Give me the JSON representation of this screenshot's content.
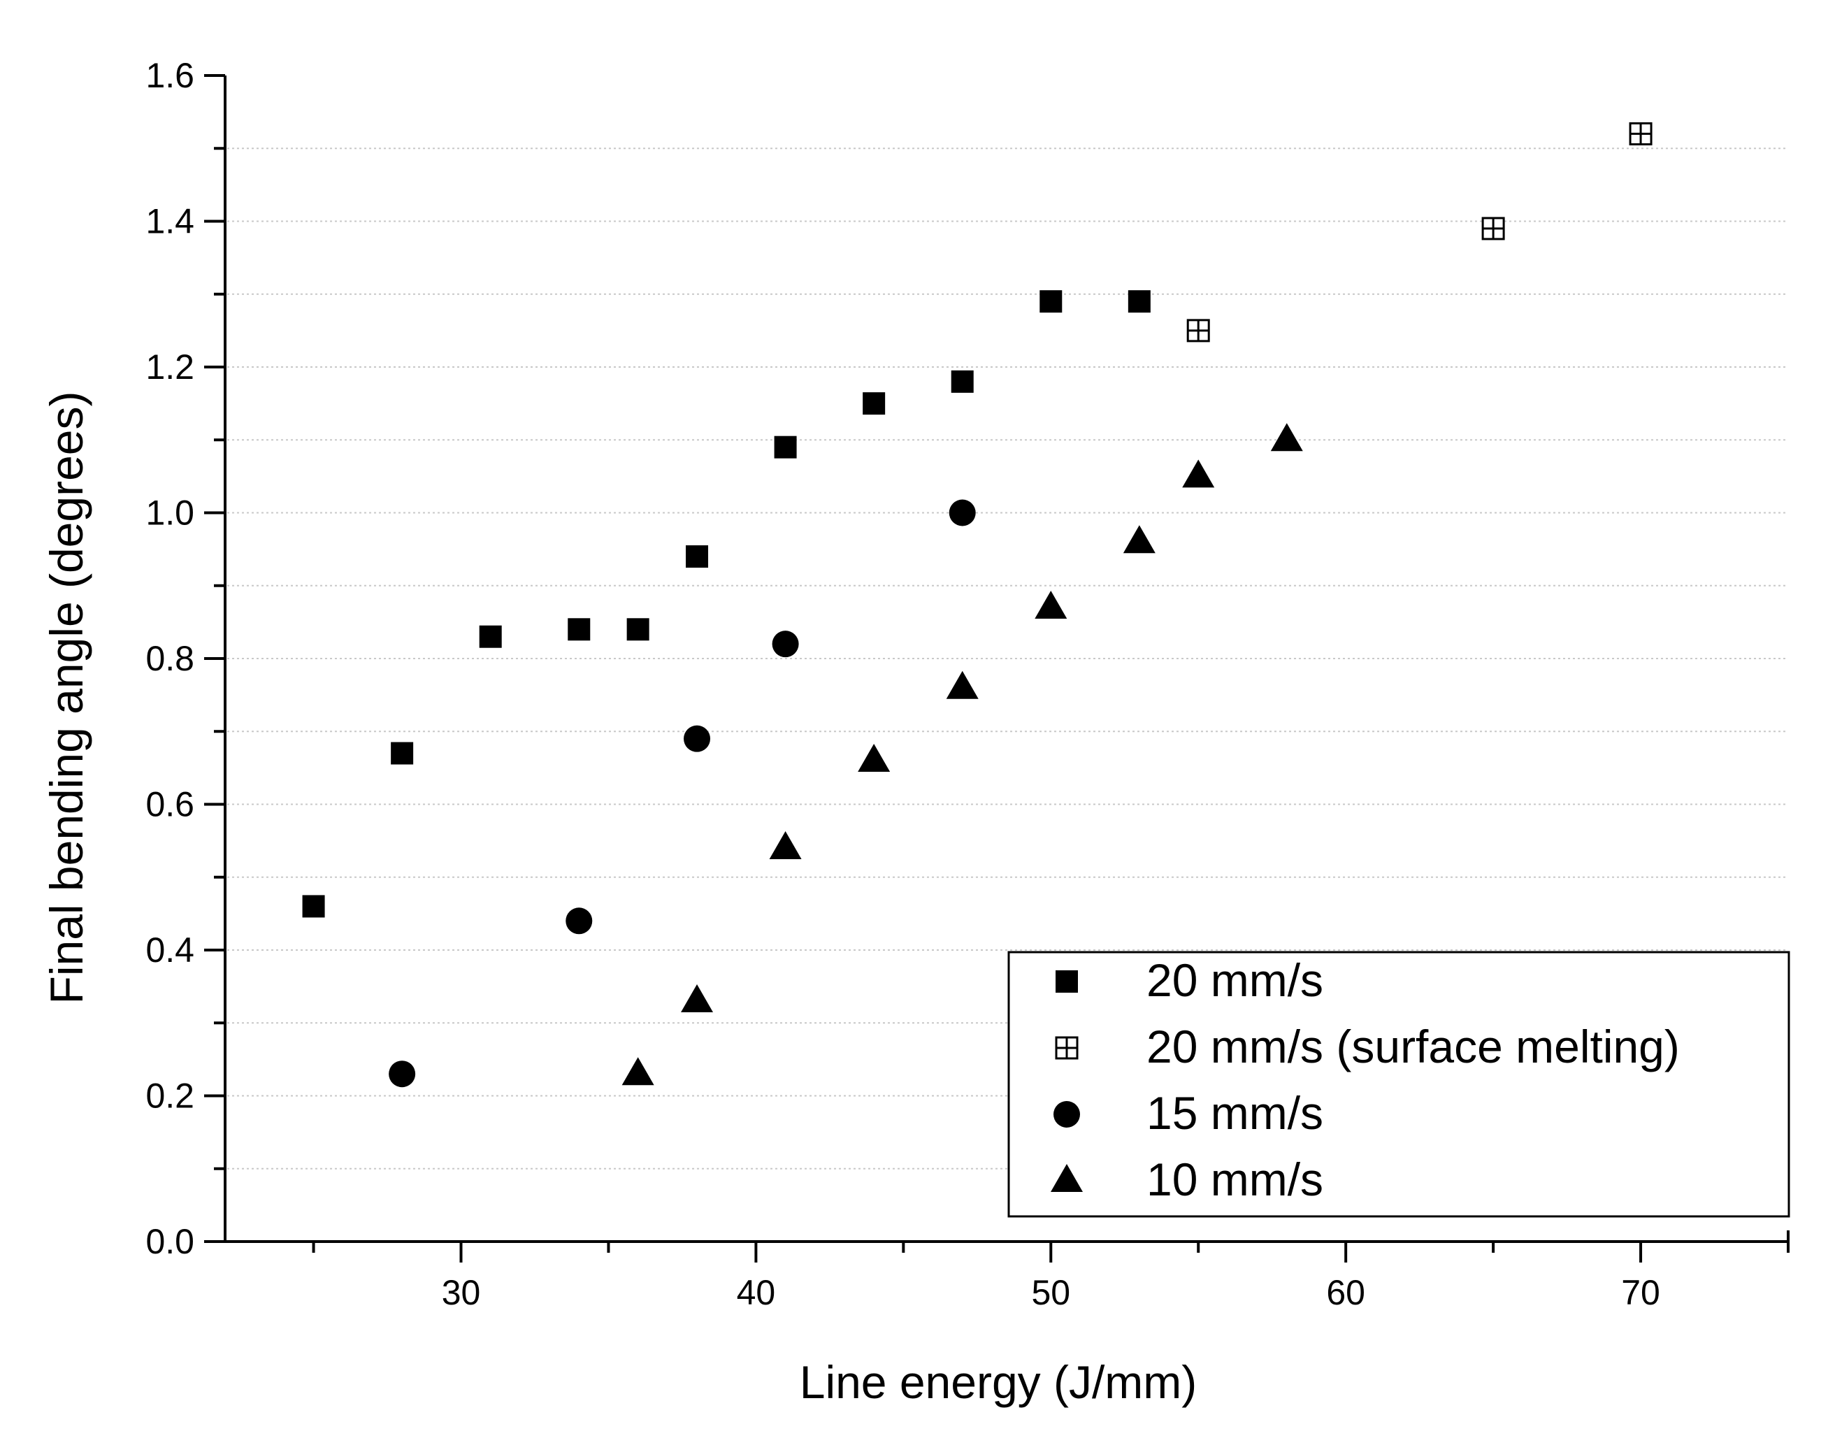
{
  "chart_data": {
    "type": "scatter",
    "title": "",
    "xlabel": "Line energy (J/mm)",
    "ylabel": "Final bending angle (degrees)",
    "xlim": [
      22,
      75
    ],
    "ylim": [
      0,
      1.6
    ],
    "x_ticks": [
      30,
      40,
      50,
      60,
      70
    ],
    "x_tick_labels": [
      "30",
      "40",
      "50",
      "60",
      "70"
    ],
    "y_ticks": [
      0,
      0.2,
      0.4,
      0.6,
      0.8,
      1.0,
      1.2,
      1.4,
      1.6
    ],
    "y_tick_labels": [
      "0.0",
      "0.2",
      "0.4",
      "0.6",
      "0.8",
      "1.0",
      "1.2",
      "1.4",
      "1.6"
    ],
    "grid": true,
    "legend_position": "bottom-right",
    "series": [
      {
        "name": "20 mm/s",
        "marker": "square-filled",
        "points": [
          [
            25,
            0.46
          ],
          [
            28,
            0.67
          ],
          [
            31,
            0.83
          ],
          [
            34,
            0.84
          ],
          [
            36,
            0.84
          ],
          [
            38,
            0.94
          ],
          [
            41,
            1.09
          ],
          [
            44,
            1.15
          ],
          [
            47,
            1.18
          ],
          [
            50,
            1.29
          ],
          [
            53,
            1.29
          ]
        ]
      },
      {
        "name": "20 mm/s (surface melting)",
        "marker": "square-cross",
        "points": [
          [
            55,
            1.25
          ],
          [
            65,
            1.39
          ],
          [
            70,
            1.52
          ]
        ]
      },
      {
        "name": "15 mm/s",
        "marker": "circle-filled",
        "points": [
          [
            28,
            0.23
          ],
          [
            34,
            0.44
          ],
          [
            38,
            0.69
          ],
          [
            41,
            0.82
          ],
          [
            47,
            1.0
          ]
        ]
      },
      {
        "name": "10 mm/s",
        "marker": "triangle-filled",
        "points": [
          [
            36,
            0.23
          ],
          [
            38,
            0.33
          ],
          [
            41,
            0.54
          ],
          [
            44,
            0.66
          ],
          [
            47,
            0.76
          ],
          [
            50,
            0.87
          ],
          [
            53,
            0.96
          ],
          [
            55,
            1.05
          ],
          [
            58,
            1.1
          ]
        ]
      }
    ]
  },
  "colors": {
    "marker": "#000000",
    "axis": "#000000",
    "grid": "#c8c8c8",
    "background": "#ffffff"
  }
}
